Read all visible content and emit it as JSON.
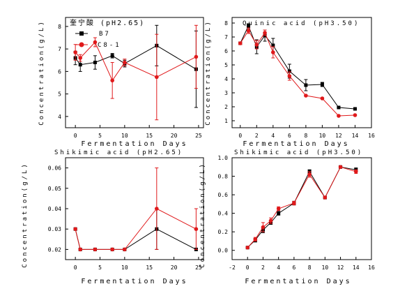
{
  "colors": {
    "B7": "#000000",
    "C8-1": "#e0191b"
  },
  "chart_data": [
    {
      "type": "line",
      "title": "奎宁酸 (pH2.65)",
      "xlabel": "Fermentation Days",
      "ylabel": "Concentration(g/L)",
      "xlim": [
        -2,
        26
      ],
      "ylim": [
        3.5,
        8.4
      ],
      "xticks": [
        0,
        5,
        10,
        15,
        20,
        25
      ],
      "yticks": [
        4,
        5,
        6,
        7,
        8
      ],
      "legend": "top-left",
      "series": [
        {
          "name": "B7",
          "x": [
            0,
            1,
            4,
            7.5,
            10,
            16.5,
            24.5
          ],
          "y": [
            6.6,
            6.3,
            6.4,
            6.7,
            6.35,
            7.15,
            6.1
          ],
          "err": [
            0.3,
            0.3,
            0.3,
            0.1,
            0.15,
            0.9,
            1.7
          ]
        },
        {
          "name": "C8-1",
          "x": [
            0,
            1,
            4,
            7.5,
            10,
            16.5,
            24.5
          ],
          "y": [
            6.85,
            6.6,
            7.3,
            5.6,
            6.4,
            5.75,
            6.65
          ],
          "err": [
            0.35,
            0.15,
            0.2,
            0.8,
            0.15,
            1.9,
            1.4
          ]
        }
      ]
    },
    {
      "type": "line",
      "title": "Quinic acid (pH3.50)",
      "xlabel": "Fermentation Days",
      "ylabel": "Concentration(g/L)",
      "xlim": [
        -1,
        16
      ],
      "ylim": [
        0.5,
        8.4
      ],
      "xticks": [
        0,
        2,
        4,
        6,
        8,
        10,
        12,
        14,
        16
      ],
      "yticks": [
        1,
        2,
        3,
        4,
        5,
        6,
        7,
        8
      ],
      "series": [
        {
          "name": "B7",
          "x": [
            0,
            1,
            2,
            3,
            4,
            6,
            8,
            10,
            12,
            14
          ],
          "y": [
            6.55,
            7.8,
            6.3,
            7.1,
            6.4,
            4.55,
            3.55,
            3.6,
            1.95,
            1.85
          ],
          "err": [
            0.1,
            0.15,
            0.5,
            0.4,
            0.5,
            0.5,
            0.4,
            0.15,
            0.05,
            0.05
          ]
        },
        {
          "name": "C8-1",
          "x": [
            0,
            1,
            2,
            3,
            4,
            6,
            8,
            10,
            12,
            14
          ],
          "y": [
            6.55,
            7.45,
            6.45,
            7.3,
            5.9,
            4.2,
            2.8,
            2.6,
            1.35,
            1.4
          ],
          "err": [
            0.1,
            0.2,
            0.3,
            0.2,
            0.4,
            0.3,
            0.05,
            0.05,
            0.05,
            0.05
          ]
        }
      ]
    },
    {
      "type": "line",
      "title": "Shikimic acid (pH2.65)",
      "xlabel": "Fermentation Days",
      "ylabel": "Concentration(g/L)",
      "xlim": [
        -2,
        26
      ],
      "ylim": [
        0.015,
        0.065
      ],
      "xticks": [
        0,
        5,
        10,
        15,
        20,
        25
      ],
      "yticks": [
        0.02,
        0.03,
        0.04,
        0.05,
        0.06
      ],
      "ytick_labels": [
        "0.02",
        "0.03",
        "0.04",
        "0.05",
        "0.06"
      ],
      "series": [
        {
          "name": "B7",
          "x": [
            0,
            1,
            4,
            7.5,
            10,
            16.5,
            24.5
          ],
          "y": [
            0.03,
            0.02,
            0.02,
            0.02,
            0.02,
            0.03,
            0.02
          ],
          "err": [
            0,
            0,
            0,
            0,
            0,
            0.01,
            0
          ]
        },
        {
          "name": "C8-1",
          "x": [
            0,
            1,
            4,
            7.5,
            10,
            16.5,
            24.5
          ],
          "y": [
            0.03,
            0.02,
            0.02,
            0.02,
            0.02,
            0.04,
            0.03
          ],
          "err": [
            0,
            0,
            0,
            0,
            0,
            0.02,
            0.01
          ]
        }
      ]
    },
    {
      "type": "line",
      "title": "Shikimic acid (pH3.50)",
      "xlabel": "Fermentation Days",
      "ylabel": "Concentration(g/L)",
      "xlim": [
        -2,
        16
      ],
      "ylim": [
        -0.1,
        1.0
      ],
      "xticks": [
        -2,
        0,
        2,
        4,
        6,
        8,
        10,
        12,
        14,
        16
      ],
      "yticks": [
        0.0,
        0.2,
        0.4,
        0.6,
        0.8,
        1.0
      ],
      "ytick_labels": [
        "0.0",
        "0.2",
        "0.4",
        "0.6",
        "0.8",
        "1.0"
      ],
      "series": [
        {
          "name": "B7",
          "x": [
            0,
            1,
            2,
            3,
            4,
            6,
            8,
            10,
            12,
            14
          ],
          "y": [
            0.03,
            0.11,
            0.22,
            0.3,
            0.4,
            0.51,
            0.85,
            0.57,
            0.9,
            0.87
          ],
          "err": [
            0,
            0.02,
            0.03,
            0.02,
            0.02,
            0.02,
            0.02,
            0.01,
            0.01,
            0.02
          ]
        },
        {
          "name": "C8-1",
          "x": [
            0,
            1,
            2,
            3,
            4,
            6,
            8,
            10,
            12,
            14
          ],
          "y": [
            0.03,
            0.12,
            0.25,
            0.32,
            0.45,
            0.51,
            0.82,
            0.57,
            0.9,
            0.85
          ],
          "err": [
            0,
            0.02,
            0.05,
            0.03,
            0.02,
            0.02,
            0.03,
            0.01,
            0.01,
            0.02
          ]
        }
      ]
    }
  ]
}
